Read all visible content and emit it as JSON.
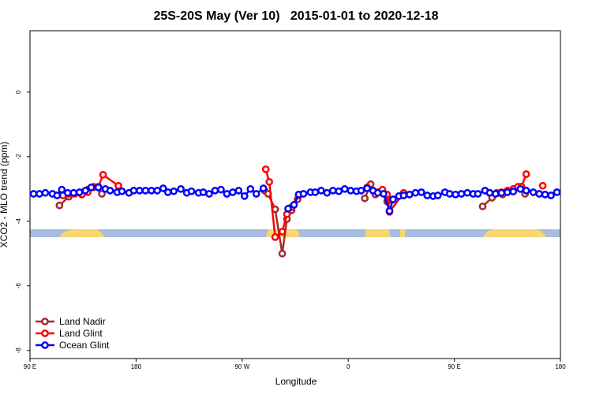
{
  "chart_data": {
    "type": "line",
    "title": "25S-20S May (Ver 10)   2015-01-01 to 2020-12-18",
    "x_label": "Longitude",
    "y_label": "XCO2 - MLO trend (ppm)",
    "xlim": [
      90,
      540
    ],
    "xticks": [
      {
        "value": 90,
        "label": "90 E"
      },
      180,
      {
        "value": 270,
        "label": "90 W"
      },
      {
        "value": 360,
        "label": "0"
      },
      {
        "value": 450,
        "label": "90 E"
      },
      180
    ],
    "ylim": [
      -8.25,
      1.9
    ],
    "yticks": [
      0,
      -2,
      -4,
      -6,
      -8
    ],
    "legend": "bottom-left",
    "series": [
      {
        "name": "Land Nadir",
        "color": "#a52a2a",
        "x": [
          115,
          123,
          134,
          139,
          144,
          151,
          250,
          289,
          292,
          298,
          304,
          308,
          312,
          317,
          340,
          374,
          379,
          383,
          388,
          393,
          397,
          450,
          474,
          482,
          491,
          500,
          506,
          510
        ],
        "values": [
          -3.51,
          -3.24,
          -3.17,
          -3.02,
          -2.93,
          -3.15,
          null,
          -3.05,
          -3.15,
          -3.63,
          -5.0,
          -3.93,
          -3.66,
          -3.32,
          null,
          -3.29,
          -2.85,
          -3.17,
          -3.07,
          -3.39,
          -3.34,
          null,
          -3.54,
          -3.27,
          -3.17,
          -3.0,
          -2.93,
          -3.15
        ]
      },
      {
        "name": "Land Glint",
        "color": "#ff0000",
        "x": [
          118,
          123,
          128,
          134,
          139,
          144,
          148,
          152,
          165,
          250,
          290,
          293,
          298,
          304,
          308,
          312,
          318,
          340,
          376,
          381,
          385,
          389,
          393,
          395,
          407,
          450,
          480,
          486,
          490,
          495,
          500,
          504,
          507,
          511,
          520,
          525
        ],
        "values": [
          -3.2,
          -3.15,
          -3.15,
          -3.17,
          -3.1,
          -2.95,
          -2.93,
          -2.56,
          -2.9,
          null,
          -2.39,
          -2.78,
          -4.49,
          -4.32,
          -3.78,
          -3.56,
          -3.2,
          null,
          -2.95,
          -3.05,
          -3.1,
          -3.02,
          -3.17,
          -3.71,
          -3.12,
          null,
          -3.12,
          -3.12,
          -3.1,
          -3.05,
          -3.0,
          -2.93,
          -2.93,
          -2.54,
          null,
          -2.9
        ]
      },
      {
        "name": "Ocean Glint",
        "color": "#0000ff",
        "x": [
          93,
          98,
          103,
          109,
          113,
          117,
          122,
          127,
          132,
          137,
          142,
          148,
          154,
          158,
          164,
          168,
          174,
          178,
          183,
          188,
          193,
          198,
          203,
          207,
          212,
          218,
          223,
          227,
          233,
          237,
          242,
          247,
          252,
          257,
          262,
          267,
          272,
          277,
          282,
          288,
          298,
          309,
          314,
          318,
          322,
          328,
          332,
          337,
          342,
          347,
          352,
          357,
          362,
          367,
          371,
          376,
          381,
          385,
          390,
          395,
          398,
          403,
          407,
          412,
          417,
          422,
          427,
          432,
          436,
          442,
          446,
          451,
          456,
          461,
          466,
          470,
          476,
          480,
          485,
          490,
          495,
          500,
          506,
          511,
          517,
          522,
          527,
          532,
          537
        ],
        "values": [
          -3.15,
          -3.15,
          -3.12,
          -3.15,
          -3.2,
          -3.02,
          -3.12,
          -3.12,
          -3.1,
          -3.05,
          -2.95,
          -2.95,
          -3.0,
          -3.05,
          -3.1,
          -3.07,
          -3.12,
          -3.05,
          -3.05,
          -3.05,
          -3.05,
          -3.05,
          -2.98,
          -3.1,
          -3.07,
          -3.0,
          -3.12,
          -3.07,
          -3.12,
          -3.1,
          -3.15,
          -3.05,
          -3.02,
          -3.15,
          -3.1,
          -3.05,
          -3.22,
          -3.0,
          -3.15,
          -2.98,
          null,
          -3.61,
          -3.49,
          -3.17,
          -3.15,
          -3.1,
          -3.1,
          -3.05,
          -3.12,
          -3.05,
          -3.07,
          -3.0,
          -3.05,
          -3.07,
          -3.05,
          -2.98,
          -3.05,
          -3.12,
          -3.15,
          -3.68,
          -3.32,
          -3.22,
          -3.2,
          -3.17,
          -3.12,
          -3.1,
          -3.2,
          -3.22,
          -3.2,
          -3.1,
          -3.15,
          -3.17,
          -3.15,
          -3.12,
          -3.15,
          -3.15,
          -3.05,
          -3.12,
          -3.15,
          -3.12,
          -3.1,
          -3.08,
          -3.0,
          -3.05,
          -3.1,
          -3.15,
          -3.17,
          -3.2,
          -3.1
        ]
      }
    ]
  }
}
